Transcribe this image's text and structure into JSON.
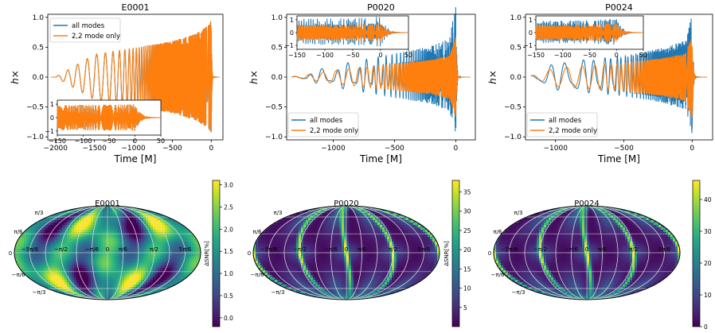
{
  "figure": {
    "waveform_panels": [
      {
        "title": "E0001",
        "ylabel": "h×",
        "xlabel": "Time [M]",
        "xlim": [
          -2100,
          150
        ],
        "ylim": [
          -1.05,
          1.05
        ],
        "xticks": [
          -2000,
          -1500,
          -1000,
          -500,
          0
        ],
        "xtick_labels": [
          "−2000",
          "−1500",
          "−1000",
          "−500",
          "0"
        ],
        "yticks": [
          -1.0,
          -0.5,
          0.0,
          0.5,
          1.0
        ],
        "ytick_labels": [
          "−1.0",
          "−0.5",
          "0.0",
          "0.5",
          "1.0"
        ],
        "legend": {
          "position": "upper-left",
          "entries": [
            "all modes",
            "2,2 mode only"
          ]
        },
        "inset": {
          "position": "lower-left",
          "xlim": [
            -150,
            50
          ],
          "ylim": [
            -1.3,
            1.3
          ],
          "xticks": [
            -150,
            -100,
            -50,
            0,
            50
          ],
          "xtick_labels": [
            "−150",
            "−100",
            "−50",
            "0",
            "50"
          ],
          "yticks": [
            -1,
            0,
            1
          ],
          "ytick_labels": [
            "−1",
            "0",
            "1"
          ]
        }
      },
      {
        "title": "P0020",
        "ylabel": "h×",
        "xlabel": "Time [M]",
        "xlim": [
          -1380,
          160
        ],
        "ylim": [
          -1.05,
          1.05
        ],
        "xticks": [
          -1000,
          -500,
          0
        ],
        "xtick_labels": [
          "−1000",
          "−500",
          "0"
        ],
        "yticks": [
          -1.0,
          -0.5,
          0.0,
          0.5,
          1.0
        ],
        "ytick_labels": [
          "−1.0",
          "−0.5",
          "0.0",
          "0.5",
          "1.0"
        ],
        "legend": {
          "position": "lower-left",
          "entries": [
            "all modes",
            "2,2 mode only"
          ]
        },
        "inset": {
          "position": "upper-left",
          "xlim": [
            -150,
            50
          ],
          "ylim": [
            -1.3,
            1.3
          ],
          "xticks": [
            -150,
            -100,
            -50,
            0,
            50
          ],
          "xtick_labels": [
            "−150",
            "−100",
            "−50",
            "0",
            "50"
          ],
          "yticks": [
            -1,
            0,
            1
          ],
          "ytick_labels": [
            "−1",
            "0",
            "1"
          ]
        }
      },
      {
        "title": "P0024",
        "ylabel": "h×",
        "xlabel": "Time [M]",
        "xlim": [
          -1220,
          150
        ],
        "ylim": [
          -1.05,
          1.05
        ],
        "xticks": [
          -1000,
          -500,
          0
        ],
        "xtick_labels": [
          "−1000",
          "−500",
          "0"
        ],
        "yticks": [
          -1.0,
          -0.5,
          0.0,
          0.5,
          1.0
        ],
        "ytick_labels": [
          "−1.0",
          "−0.5",
          "0.0",
          "0.5",
          "1.0"
        ],
        "legend": {
          "position": "lower-left",
          "entries": [
            "all modes",
            "2,2 mode only"
          ]
        },
        "inset": {
          "position": "upper-left",
          "xlim": [
            -150,
            50
          ],
          "ylim": [
            -1.3,
            1.3
          ],
          "xticks": [
            -150,
            -100,
            -50,
            0,
            50
          ],
          "xtick_labels": [
            "−150",
            "−100",
            "−50",
            "0",
            "50"
          ],
          "yticks": [
            -1,
            0,
            1
          ],
          "ytick_labels": [
            "−1",
            "0",
            "1"
          ]
        }
      }
    ],
    "skymap_panels": [
      {
        "title": "E0001",
        "colorbar": {
          "label": "ΔSNR[%]",
          "range": [
            -0.2,
            3.1
          ],
          "ticks": [
            0.0,
            0.5,
            1.0,
            1.5,
            2.0,
            2.5,
            3.0
          ],
          "tick_labels": [
            "0.0",
            "0.5",
            "1.0",
            "1.5",
            "2.0",
            "2.5",
            "3.0"
          ],
          "colormap": "viridis"
        },
        "lat_labels": [
          "π/3",
          "π/6",
          "0",
          "−π/6",
          "−π/3"
        ],
        "lon_labels": [
          "−5π/6",
          "−π/2",
          "−π/6",
          "0",
          "π/6",
          "π/2",
          "5π/6"
        ]
      },
      {
        "title": "P0020",
        "colorbar": {
          "label": "ΔSNR[%]",
          "range": [
            0,
            38
          ],
          "ticks": [
            5,
            10,
            15,
            20,
            25,
            30,
            35
          ],
          "tick_labels": [
            "5",
            "10",
            "15",
            "20",
            "25",
            "30",
            "35"
          ],
          "colormap": "viridis"
        },
        "lat_labels": [
          "π/3",
          "π/6",
          "0",
          "−π/6",
          "−π/3"
        ],
        "lon_labels": [
          "−5π/6",
          "−π/2",
          "−π/6",
          "0",
          "π/6",
          "π/2",
          "5π/6"
        ]
      },
      {
        "title": "P0024",
        "colorbar": {
          "label": "",
          "range": [
            0,
            46
          ],
          "ticks": [
            0,
            10,
            20,
            30,
            40
          ],
          "tick_labels": [
            "0",
            "10",
            "20",
            "30",
            "40"
          ],
          "colormap": "viridis"
        },
        "lat_labels": [
          "π/3",
          "π/6",
          "0",
          "−π/6",
          "−π/3"
        ],
        "lon_labels": [
          "−5π/6",
          "−π/2",
          "−π/6",
          "0",
          "π/6",
          "π/2",
          "5π/6"
        ]
      }
    ],
    "colors": {
      "all_modes": "#1f77b4",
      "mode_22": "#ff7f0e",
      "grid": "#d9d9d9",
      "lon_label": "#5fb8e8"
    }
  },
  "chart_data": [
    {
      "type": "line",
      "title": "E0001",
      "xlabel": "Time [M]",
      "ylabel": "h×",
      "xlim": [
        -2100,
        150
      ],
      "ylim": [
        -1.05,
        1.05
      ],
      "series": [
        {
          "name": "all modes"
        },
        {
          "name": "2,2 mode only"
        }
      ],
      "envelope": {
        "t": [
          -2000,
          -1500,
          -1000,
          -500,
          -200,
          -20,
          0,
          20,
          100
        ],
        "amp": [
          0.0,
          0.38,
          0.48,
          0.6,
          0.72,
          0.88,
          0.97,
          0.1,
          0.0
        ]
      },
      "inset": {
        "xlim": [
          -150,
          50
        ],
        "ylim": [
          -1.3,
          1.3
        ]
      }
    },
    {
      "type": "line",
      "title": "P0020",
      "xlabel": "Time [M]",
      "ylabel": "h×",
      "xlim": [
        -1380,
        160
      ],
      "ylim": [
        -1.05,
        1.05
      ],
      "series": [
        {
          "name": "all modes"
        },
        {
          "name": "2,2 mode only"
        }
      ],
      "envelope": {
        "t": [
          -1340,
          -1000,
          -500,
          -200,
          -50,
          0,
          20,
          100
        ],
        "amp": [
          0.0,
          0.15,
          0.3,
          0.4,
          0.5,
          0.95,
          0.1,
          0.0
        ]
      },
      "inset": {
        "xlim": [
          -150,
          50
        ],
        "ylim": [
          -1.3,
          1.3
        ]
      }
    },
    {
      "type": "line",
      "title": "P0024",
      "xlabel": "Time [M]",
      "ylabel": "h×",
      "xlim": [
        -1220,
        150
      ],
      "ylim": [
        -1.05,
        1.05
      ],
      "series": [
        {
          "name": "all modes"
        },
        {
          "name": "2,2 mode only"
        }
      ],
      "envelope": {
        "t": [
          -1200,
          -1000,
          -500,
          -200,
          -50,
          0,
          20,
          100
        ],
        "amp": [
          0.0,
          0.22,
          0.32,
          0.45,
          0.55,
          0.98,
          0.1,
          0.0
        ]
      },
      "inset": {
        "xlim": [
          -150,
          50
        ],
        "ylim": [
          -1.3,
          1.3
        ]
      }
    },
    {
      "type": "heatmap",
      "title": "E0001",
      "projection": "mollweide",
      "colorbar_label": "ΔSNR[%]",
      "value_range": [
        -0.2,
        3.1
      ]
    },
    {
      "type": "heatmap",
      "title": "P0020",
      "projection": "mollweide",
      "colorbar_label": "ΔSNR[%]",
      "value_range": [
        0,
        38
      ]
    },
    {
      "type": "heatmap",
      "title": "P0024",
      "projection": "mollweide",
      "colorbar_label": "",
      "value_range": [
        0,
        46
      ]
    }
  ]
}
